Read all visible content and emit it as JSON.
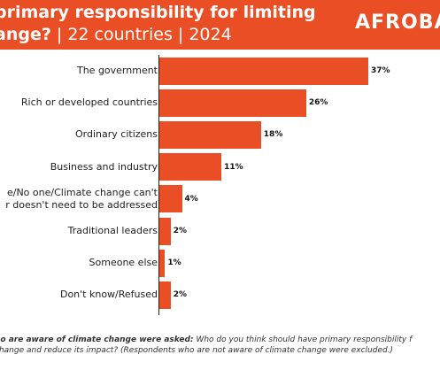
{
  "header": {
    "title_line1": "primary responsibility for limiting",
    "title_line2_bold": "ange?",
    "title_line2_rest": " | 22 countries | 2024",
    "logo_text": "AFROBA"
  },
  "chart_data": {
    "type": "bar",
    "orientation": "horizontal",
    "categories": [
      "The government",
      "Rich or developed countries",
      "Ordinary citizens",
      "Business and industry",
      "e/No one/Climate change can't\nr doesn't need to be addressed",
      "Traditional leaders",
      "Someone else",
      "Don't know/Refused"
    ],
    "values": [
      37,
      26,
      18,
      11,
      4,
      2,
      1,
      2
    ],
    "value_labels": [
      "37%",
      "26%",
      "18%",
      "11%",
      "4%",
      "2%",
      "1%",
      "2%"
    ],
    "unit": "%",
    "xlim": [
      0,
      40
    ],
    "grid": false,
    "bar_color": "#e94e24"
  },
  "footnote": {
    "line1_bold": "ho are aware of climate change were asked:",
    "line1_rest": " Who do you think should have primary responsibility f",
    "line2": "change and reduce its impact? (Respondents who are not aware of climate change were excluded.)"
  },
  "colors": {
    "accent": "#e94e24",
    "text": "#222222"
  }
}
